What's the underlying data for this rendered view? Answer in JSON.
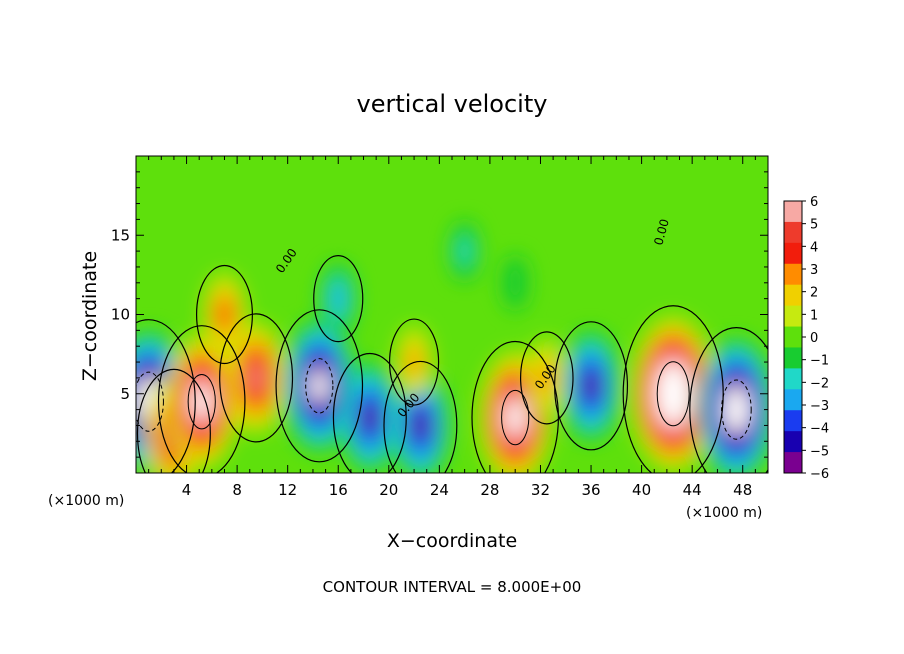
{
  "chart_data": {
    "type": "heatmap",
    "title": "vertical velocity",
    "xlabel": "X−coordinate",
    "ylabel": "Z−coordinate",
    "x_unit_left": "(×1000 m)",
    "x_unit_right": "(×1000 m)",
    "footer": "CONTOUR INTERVAL = 8.000E+00",
    "xlim": [
      0,
      50
    ],
    "ylim": [
      0,
      20
    ],
    "x_ticks": [
      4,
      8,
      12,
      16,
      20,
      24,
      28,
      32,
      36,
      40,
      44,
      48
    ],
    "x_tick_labels": [
      "4",
      "8",
      "12",
      "16",
      "20",
      "24",
      "28",
      "32",
      "36",
      "40",
      "44",
      "48"
    ],
    "y_ticks": [
      5,
      10,
      15
    ],
    "y_tick_labels": [
      "5",
      "10",
      "15"
    ],
    "colorbar": {
      "values": [
        6,
        5,
        4,
        3,
        2,
        1,
        0,
        -1,
        -2,
        -3,
        -4,
        -5,
        -6
      ],
      "labels": [
        "6",
        "5",
        "4",
        "3",
        "2",
        "1",
        "0",
        "−1",
        "−2",
        "−3",
        "−4",
        "−5",
        "−6"
      ],
      "colors": [
        "#f7a9a4",
        "#ee3b2c",
        "#f21d0c",
        "#ff8c00",
        "#f0d000",
        "#c6ea10",
        "#5ee00c",
        "#18cc30",
        "#20d8c8",
        "#1aa8f0",
        "#1a3cf0",
        "#1800b0",
        "#7a0090"
      ]
    },
    "contour_labels": [
      "0.00",
      "0.00",
      "0.00",
      "0.00",
      "0.00"
    ],
    "features": [
      {
        "x": 1,
        "z": 4.5,
        "w": -9
      },
      {
        "x": 3,
        "z": 2.5,
        "w": 6
      },
      {
        "x": 5.2,
        "z": 4.5,
        "w": 8
      },
      {
        "x": 7,
        "z": 10,
        "w": 3.5
      },
      {
        "x": 9.5,
        "z": 6,
        "w": 6
      },
      {
        "x": 14.5,
        "z": 5.5,
        "w": -8
      },
      {
        "x": 16,
        "z": 11,
        "w": -2.5
      },
      {
        "x": 18.5,
        "z": 3.5,
        "w": -6
      },
      {
        "x": 22.5,
        "z": 3,
        "w": -6
      },
      {
        "x": 22,
        "z": 7,
        "w": 2.5
      },
      {
        "x": 30,
        "z": 3.5,
        "w": 8
      },
      {
        "x": 32.5,
        "z": 6,
        "w": 3
      },
      {
        "x": 36,
        "z": 5.5,
        "w": -6
      },
      {
        "x": 42.5,
        "z": 5,
        "w": 10
      },
      {
        "x": 47.5,
        "z": 4,
        "w": -9
      },
      {
        "x": 26,
        "z": 14,
        "w": -1.5
      },
      {
        "x": 30,
        "z": 12,
        "w": -1
      }
    ]
  }
}
